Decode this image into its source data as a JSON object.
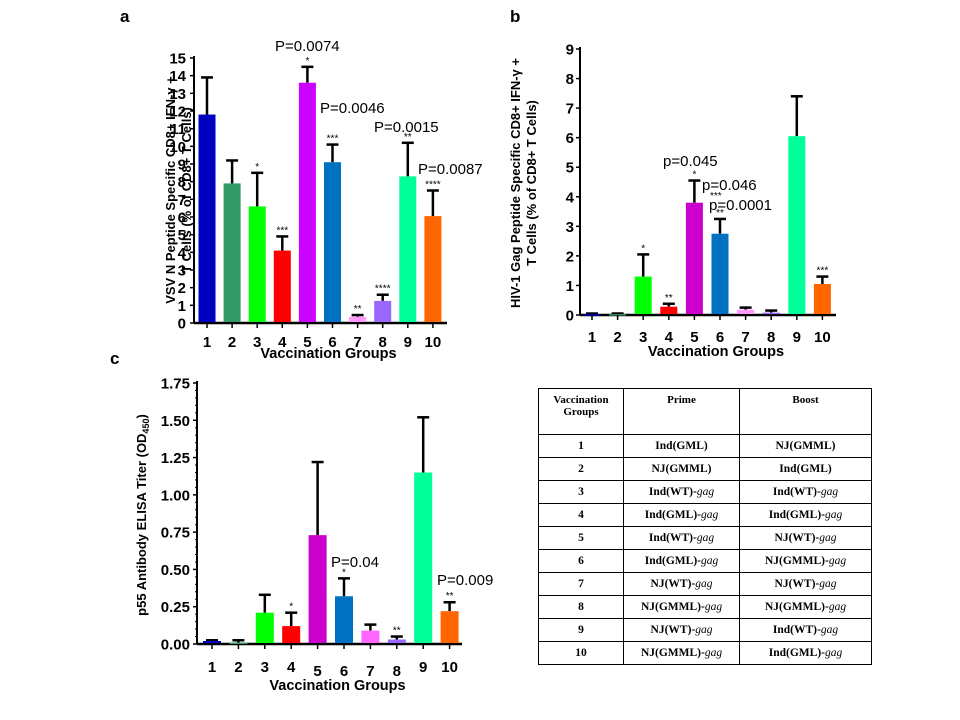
{
  "chart_data": [
    {
      "type": "bar",
      "panel": "a",
      "title": "",
      "xlabel": "Vaccination Groups",
      "ylabel_lines": [
        "VSV N Peptide Specific CD8+ IFN-γ +",
        "T Cells (% of CD8+ T Cells)"
      ],
      "categories": [
        "1",
        "2",
        "3",
        "4",
        "5",
        "6",
        "7",
        "8",
        "9",
        "10"
      ],
      "values": [
        11.8,
        7.9,
        6.6,
        4.1,
        13.6,
        9.1,
        0.35,
        1.25,
        8.3,
        6.05
      ],
      "error_upper": [
        13.9,
        9.2,
        8.5,
        4.9,
        14.5,
        10.1,
        0.45,
        1.6,
        10.2,
        7.5
      ],
      "colors": [
        "#0000c0",
        "#339966",
        "#00ff00",
        "#ff0000",
        "#cc00ff",
        "#0070c0",
        "#ff99ff",
        "#9966ff",
        "#00ff99",
        "#ff6600"
      ],
      "significance": [
        "",
        "",
        "*",
        "***",
        "*",
        "***",
        "**",
        "****",
        "**",
        "****"
      ],
      "annotations": [
        {
          "group": "5",
          "text": "P=0.0074"
        },
        {
          "group": "6",
          "text": "P=0.0046"
        },
        {
          "group": "9",
          "text": "P=0.0015"
        },
        {
          "group": "10",
          "text": "P=0.0087"
        }
      ],
      "yticks": [
        "0",
        "1",
        "2",
        "3",
        "4",
        "5",
        "6",
        "7",
        "8",
        "9",
        "10",
        "11",
        "12",
        "13",
        "14",
        "15"
      ],
      "ylim": [
        0,
        15
      ],
      "grid": false
    },
    {
      "type": "bar",
      "panel": "b",
      "title": "",
      "xlabel": "Vaccination Groups",
      "ylabel_lines": [
        "HIV-1 Gag Peptide Specific CD8+ IFN-γ +",
        "T Cells (% of CD8+ T Cells)"
      ],
      "categories": [
        "1",
        "2",
        "3",
        "4",
        "5",
        "6",
        "7",
        "8",
        "9",
        "10"
      ],
      "values": [
        0.03,
        0.03,
        1.3,
        0.28,
        3.8,
        2.75,
        0.18,
        0.08,
        6.05,
        1.05
      ],
      "error_upper": [
        0.05,
        0.05,
        2.05,
        0.38,
        4.55,
        3.25,
        0.25,
        0.15,
        7.4,
        1.3
      ],
      "colors": [
        "#0000c0",
        "#339966",
        "#00ff00",
        "#ff0000",
        "#cc00cc",
        "#0070c0",
        "#ff99ff",
        "#9966ff",
        "#00ff99",
        "#ff6600"
      ],
      "significance": [
        "",
        "",
        "*",
        "**",
        "*",
        "**",
        "",
        "",
        "",
        "***"
      ],
      "annotations": [
        {
          "group": "5",
          "text": "p=0.045"
        },
        {
          "group": "6",
          "text": "p=0.046"
        },
        {
          "group": "6",
          "text": "***"
        },
        {
          "group": "6",
          "text": "p=0.0001"
        }
      ],
      "yticks": [
        "0",
        "1",
        "2",
        "3",
        "4",
        "5",
        "6",
        "7",
        "8",
        "9"
      ],
      "ylim": [
        0,
        9
      ],
      "grid": false
    },
    {
      "type": "bar",
      "panel": "c",
      "title": "",
      "xlabel": "Vaccination Groups",
      "ylabel_lines": [
        "p55 Antibody ELISA Titer (OD450)"
      ],
      "categories": [
        "1",
        "2",
        "3",
        "4",
        "5",
        "6",
        "7",
        "8",
        "9",
        "10"
      ],
      "values": [
        0.02,
        0.01,
        0.21,
        0.12,
        0.73,
        0.32,
        0.09,
        0.03,
        1.15,
        0.22
      ],
      "error_upper": [
        0.025,
        0.025,
        0.33,
        0.21,
        1.22,
        0.44,
        0.13,
        0.05,
        1.52,
        0.28
      ],
      "colors": [
        "#0000c0",
        "#339966",
        "#00ff00",
        "#ff0000",
        "#cc00cc",
        "#0070c0",
        "#ff66ff",
        "#9966ff",
        "#00ff99",
        "#ff6600"
      ],
      "significance": [
        "",
        "",
        "",
        "*",
        "",
        "*",
        "",
        "**",
        "",
        "**"
      ],
      "annotations": [
        {
          "group": "6",
          "text": "P=0.04"
        },
        {
          "group": "10",
          "text": "P=0.009"
        }
      ],
      "yticks": [
        "0.00",
        "0.25",
        "0.50",
        "0.75",
        "1.00",
        "1.25",
        "1.50",
        "1.75"
      ],
      "ylim": [
        0,
        1.75
      ],
      "grid": false
    }
  ],
  "panels": {
    "a": {
      "letter": "a"
    },
    "b": {
      "letter": "b"
    },
    "c": {
      "letter": "c"
    }
  },
  "ylabel_c": {
    "main": "p55 Antibody ELISA Titer (OD",
    "sub": "450",
    "end": ")"
  },
  "table": {
    "headers": [
      "Vaccination Groups",
      "Prime",
      "Boost"
    ],
    "rows": [
      {
        "group": "1",
        "prime": "Ind(GML)",
        "prime_suffix": "",
        "boost": "NJ(GMML)",
        "boost_suffix": ""
      },
      {
        "group": "2",
        "prime": "NJ(GMML)",
        "prime_suffix": "",
        "boost": "Ind(GML)",
        "boost_suffix": ""
      },
      {
        "group": "3",
        "prime": "Ind(WT)-",
        "prime_suffix": "gag",
        "boost": "Ind(WT)-",
        "boost_suffix": "gag"
      },
      {
        "group": "4",
        "prime": "Ind(GML)-",
        "prime_suffix": "gag",
        "boost": "Ind(GML)-",
        "boost_suffix": "gag"
      },
      {
        "group": "5",
        "prime": "Ind(WT)-",
        "prime_suffix": "gag",
        "boost": "NJ(WT)-",
        "boost_suffix": "gag"
      },
      {
        "group": "6",
        "prime": "Ind(GML)-",
        "prime_suffix": "gag",
        "boost": "NJ(GMML)-",
        "boost_suffix": "gag"
      },
      {
        "group": "7",
        "prime": "NJ(WT)-",
        "prime_suffix": "gag",
        "boost": "NJ(WT)-",
        "boost_suffix": "gag"
      },
      {
        "group": "8",
        "prime": "NJ(GMML)-",
        "prime_suffix": "gag",
        "boost": "NJ(GMML)-",
        "boost_suffix": "gag"
      },
      {
        "group": "9",
        "prime": "NJ(WT)-",
        "prime_suffix": "gag",
        "boost": "Ind(WT)-",
        "boost_suffix": "gag"
      },
      {
        "group": "10",
        "prime": "NJ(GMML)-",
        "prime_suffix": "gag",
        "boost": "Ind(GML)-",
        "boost_suffix": "gag"
      }
    ]
  }
}
